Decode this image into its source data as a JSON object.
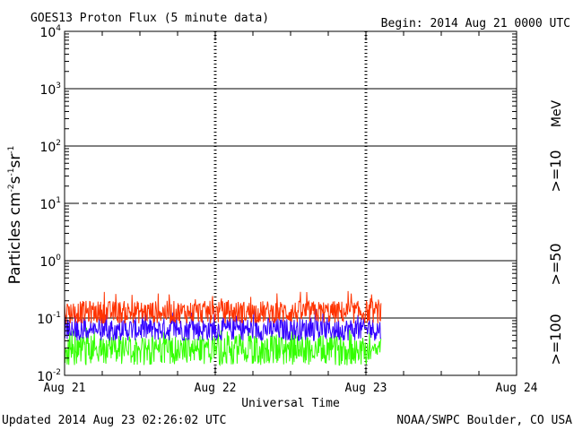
{
  "chart_data": {
    "type": "line",
    "title": "GOES13 Proton Flux (5 minute data)",
    "begin_label": "Begin: 2014 Aug 21 0000 UTC",
    "xlabel": "Universal Time",
    "ylabel": {
      "base": "Particles cm",
      "exp1": "-2",
      "s": "s",
      "exp2": "-1",
      "sr": "sr",
      "exp3": "-1"
    },
    "x_ticks": [
      "Aug 21",
      "Aug 22",
      "Aug 23",
      "Aug 24"
    ],
    "xlim_days": [
      0,
      3
    ],
    "y_scale": "log",
    "ylim": [
      0.01,
      10000
    ],
    "y_ticks": [
      {
        "base": "10",
        "exp": "-2",
        "value": 0.01
      },
      {
        "base": "10",
        "exp": "-1",
        "value": 0.1
      },
      {
        "base": "10",
        "exp": "0",
        "value": 1
      },
      {
        "base": "10",
        "exp": "1",
        "value": 10
      },
      {
        "base": "10",
        "exp": "2",
        "value": 100
      },
      {
        "base": "10",
        "exp": "3",
        "value": 1000
      },
      {
        "base": "10",
        "exp": "4",
        "value": 10000
      }
    ],
    "solid_gridlines": [
      0.1,
      1,
      100,
      1000
    ],
    "dashed_gridlines": [
      10
    ],
    "data_end_day": 2.1,
    "unit_label": "MeV",
    "series": [
      {
        "name": ">=10",
        "color": "#ff3300",
        "typical_range": [
          0.08,
          0.2
        ],
        "peak": 0.3
      },
      {
        "name": ">=50",
        "color": "#3300ff",
        "typical_range": [
          0.04,
          0.1
        ],
        "peak": 0.15
      },
      {
        "name": ">=100",
        "color": "#33ff00",
        "typical_range": [
          0.015,
          0.05
        ],
        "peak": 0.07
      }
    ]
  },
  "footer": {
    "updated": "Updated 2014 Aug 23 02:26:02 UTC",
    "credit": "NOAA/SWPC Boulder, CO USA"
  }
}
